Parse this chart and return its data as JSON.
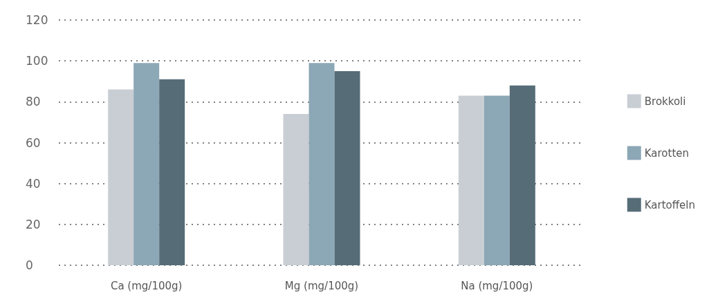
{
  "chart_data": {
    "type": "bar",
    "categories": [
      "Ca (mg/100g)",
      "Mg (mg/100g)",
      "Na (mg/100g)"
    ],
    "series": [
      {
        "name": "Brokkoli",
        "color": "#c8ced4",
        "values": [
          86,
          74,
          83
        ]
      },
      {
        "name": "Karotten",
        "color": "#8ca7b5",
        "values": [
          99,
          99,
          83
        ]
      },
      {
        "name": "Kartoffeln",
        "color": "#566d78",
        "values": [
          91,
          95,
          88
        ]
      }
    ],
    "ylim": [
      0,
      120
    ],
    "yticks": [
      0,
      20,
      40,
      60,
      80,
      100,
      120
    ],
    "grid": "y",
    "legend": "right"
  }
}
